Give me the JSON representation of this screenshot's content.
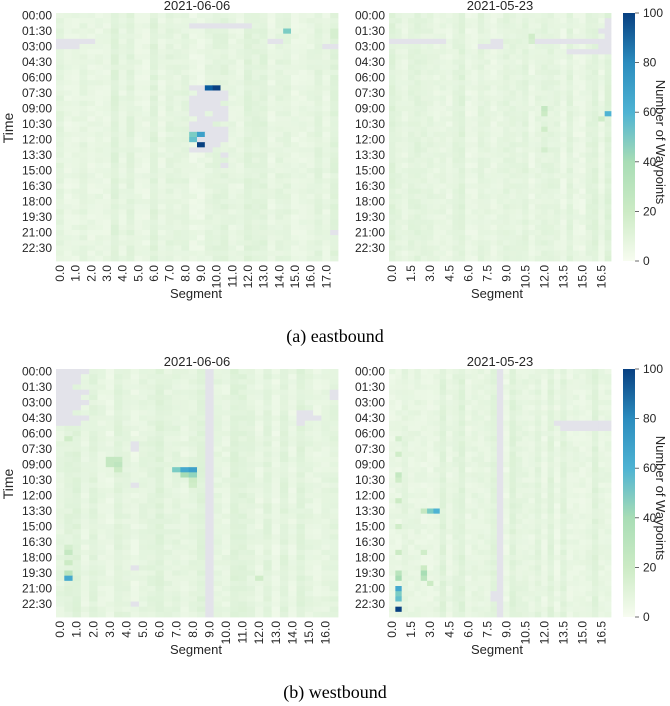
{
  "figure": {
    "panel_a_caption": "(a) eastbound",
    "panel_b_caption": "(b) westbound",
    "ylabel": "Time",
    "xlabel": "Segment",
    "colorbar_label": "Number of Waypoints"
  },
  "chart_data": [
    {
      "type": "heatmap",
      "panel": "eastbound",
      "title": "2021-06-06",
      "xlabel": "Segment",
      "ylabel": "Time",
      "x_tick_labels": [
        "0.0",
        "1.0",
        "2.0",
        "3.0",
        "4.0",
        "5.0",
        "6.0",
        "7.0",
        "8.0",
        "9.0",
        "10.0",
        "11.0",
        "12.0",
        "13.0",
        "14.0",
        "15.0",
        "16.0",
        "17.0"
      ],
      "x_cols_per_tick": 2,
      "n_cols": 36,
      "y_tick_labels": [
        "00:00",
        "01:30",
        "03:00",
        "04:30",
        "06:00",
        "07:30",
        "09:00",
        "10:30",
        "12:00",
        "13:30",
        "15:00",
        "16:30",
        "18:00",
        "19:30",
        "21:00",
        "22:30"
      ],
      "n_rows": 48,
      "background": 8,
      "missing": [
        [
          2,
          17,
          24
        ],
        [
          5,
          0,
          4
        ],
        [
          5,
          27,
          28
        ],
        [
          6,
          0,
          2
        ],
        [
          6,
          34,
          35
        ],
        [
          14,
          17,
          18
        ],
        [
          15,
          18,
          21
        ],
        [
          16,
          17,
          21
        ],
        [
          17,
          17,
          20
        ],
        [
          18,
          17,
          21
        ],
        [
          19,
          17,
          18
        ],
        [
          19,
          20,
          21
        ],
        [
          20,
          18,
          21
        ],
        [
          21,
          17,
          19
        ],
        [
          22,
          17,
          21
        ],
        [
          23,
          19,
          21
        ],
        [
          24,
          18,
          21
        ],
        [
          25,
          19,
          20
        ],
        [
          26,
          17,
          19
        ],
        [
          27,
          21,
          21
        ],
        [
          29,
          21,
          21
        ],
        [
          42,
          35,
          35
        ]
      ],
      "highlights": [
        [
          3,
          29,
          40
        ],
        [
          14,
          19,
          90
        ],
        [
          14,
          20,
          100
        ],
        [
          15,
          18,
          100
        ],
        [
          16,
          17,
          35
        ],
        [
          16,
          18,
          40
        ],
        [
          19,
          17,
          100
        ],
        [
          22,
          17,
          50
        ],
        [
          23,
          17,
          40
        ],
        [
          23,
          18,
          60
        ],
        [
          24,
          17,
          45
        ],
        [
          24,
          18,
          100
        ],
        [
          24,
          19,
          100
        ],
        [
          25,
          18,
          100
        ],
        [
          3,
          35,
          15
        ],
        [
          4,
          35,
          15
        ],
        [
          8,
          35,
          12
        ],
        [
          30,
          35,
          12
        ]
      ],
      "vmin": 0,
      "vmax": 100
    },
    {
      "type": "heatmap",
      "panel": "eastbound",
      "title": "2021-05-23",
      "xlabel": "Segment",
      "ylabel": "",
      "x_tick_labels": [
        "0.0",
        "1.5",
        "3.0",
        "4.5",
        "6.0",
        "7.5",
        "9.0",
        "10.5",
        "12.0",
        "13.5",
        "15.0",
        "16.5"
      ],
      "x_cols_per_tick": 3,
      "n_cols": 35,
      "y_tick_labels": [
        "00:00",
        "01:30",
        "03:00",
        "04:30",
        "06:00",
        "07:30",
        "09:00",
        "10:30",
        "12:00",
        "13:30",
        "15:00",
        "16:30",
        "18:00",
        "19:30",
        "21:00",
        "22:30"
      ],
      "n_rows": 48,
      "background": 8,
      "missing": [
        [
          1,
          34,
          34
        ],
        [
          2,
          34,
          34
        ],
        [
          3,
          33,
          34
        ],
        [
          4,
          34,
          34
        ],
        [
          5,
          0,
          8
        ],
        [
          5,
          16,
          17
        ],
        [
          5,
          23,
          34
        ],
        [
          6,
          14,
          17
        ],
        [
          6,
          33,
          34
        ],
        [
          7,
          28,
          34
        ]
      ],
      "highlights": [
        [
          18,
          24,
          22
        ],
        [
          19,
          24,
          20
        ],
        [
          22,
          24,
          18
        ],
        [
          26,
          24,
          16
        ],
        [
          19,
          34,
          50
        ],
        [
          20,
          33,
          18
        ],
        [
          4,
          22,
          18
        ],
        [
          5,
          22,
          16
        ]
      ],
      "vmin": 0,
      "vmax": 100
    },
    {
      "type": "heatmap",
      "panel": "westbound",
      "title": "2021-06-06",
      "xlabel": "Segment",
      "ylabel": "Time",
      "x_tick_labels": [
        "0.0",
        "1.0",
        "2.0",
        "3.0",
        "4.0",
        "5.0",
        "6.0",
        "7.0",
        "8.0",
        "9.0",
        "10.0",
        "11.0",
        "12.0",
        "13.0",
        "14.0",
        "15.0",
        "16.0"
      ],
      "x_cols_per_tick": 2,
      "n_cols": 34,
      "y_tick_labels": [
        "00:00",
        "01:30",
        "03:00",
        "04:30",
        "06:00",
        "07:30",
        "09:00",
        "10:30",
        "12:00",
        "13:30",
        "15:00",
        "16:30",
        "18:00",
        "19:30",
        "21:00",
        "22:30"
      ],
      "n_rows": 48,
      "background": 8,
      "missing": [
        [
          0,
          0,
          3
        ],
        [
          1,
          0,
          2
        ],
        [
          2,
          0,
          2
        ],
        [
          3,
          0,
          1
        ],
        [
          4,
          0,
          3
        ],
        [
          5,
          0,
          2
        ],
        [
          6,
          0,
          3
        ],
        [
          7,
          0,
          2
        ],
        [
          8,
          0,
          1
        ],
        [
          9,
          0,
          3
        ],
        [
          10,
          0,
          2
        ],
        [
          4,
          33,
          34
        ],
        [
          5,
          33,
          34
        ],
        [
          8,
          29,
          30
        ],
        [
          9,
          29,
          31
        ],
        [
          10,
          29,
          29
        ],
        [
          0,
          18,
          18
        ],
        [
          1,
          18,
          18
        ],
        [
          2,
          18,
          18
        ],
        [
          3,
          18,
          18
        ],
        [
          4,
          18,
          18
        ],
        [
          5,
          18,
          18
        ],
        [
          6,
          18,
          18
        ],
        [
          7,
          18,
          18
        ],
        [
          8,
          18,
          18
        ],
        [
          9,
          18,
          18
        ],
        [
          10,
          18,
          18
        ],
        [
          11,
          18,
          18
        ],
        [
          12,
          18,
          18
        ],
        [
          13,
          18,
          18
        ],
        [
          14,
          18,
          18
        ],
        [
          15,
          18,
          18
        ],
        [
          16,
          18,
          18
        ],
        [
          17,
          18,
          18
        ],
        [
          18,
          18,
          18
        ],
        [
          19,
          18,
          18
        ],
        [
          20,
          18,
          18
        ],
        [
          21,
          18,
          18
        ],
        [
          22,
          18,
          18
        ],
        [
          23,
          18,
          18
        ],
        [
          24,
          18,
          18
        ],
        [
          25,
          18,
          18
        ],
        [
          26,
          18,
          18
        ],
        [
          27,
          18,
          18
        ],
        [
          28,
          18,
          18
        ],
        [
          29,
          18,
          18
        ],
        [
          30,
          18,
          18
        ],
        [
          31,
          18,
          18
        ],
        [
          32,
          18,
          18
        ],
        [
          33,
          18,
          18
        ],
        [
          34,
          18,
          18
        ],
        [
          35,
          18,
          18
        ],
        [
          36,
          18,
          18
        ],
        [
          37,
          18,
          18
        ],
        [
          38,
          18,
          18
        ],
        [
          39,
          18,
          18
        ],
        [
          40,
          18,
          18
        ],
        [
          41,
          18,
          18
        ],
        [
          42,
          18,
          18
        ],
        [
          43,
          18,
          18
        ],
        [
          44,
          18,
          18
        ],
        [
          45,
          18,
          18
        ],
        [
          46,
          18,
          18
        ],
        [
          47,
          18,
          18
        ],
        [
          14,
          9,
          9
        ],
        [
          15,
          9,
          9
        ],
        [
          22,
          9,
          9
        ],
        [
          38,
          9,
          9
        ],
        [
          45,
          9,
          9
        ]
      ],
      "highlights": [
        [
          17,
          6,
          22
        ],
        [
          17,
          7,
          22
        ],
        [
          18,
          6,
          22
        ],
        [
          18,
          7,
          24
        ],
        [
          19,
          7,
          20
        ],
        [
          19,
          14,
          40
        ],
        [
          19,
          15,
          55
        ],
        [
          19,
          16,
          60
        ],
        [
          20,
          15,
          30
        ],
        [
          20,
          16,
          35
        ],
        [
          21,
          16,
          20
        ],
        [
          22,
          16,
          18
        ],
        [
          13,
          1,
          18
        ],
        [
          34,
          1,
          16
        ],
        [
          35,
          1,
          22
        ],
        [
          37,
          1,
          20
        ],
        [
          39,
          1,
          25
        ],
        [
          40,
          1,
          55
        ],
        [
          40,
          24,
          18
        ]
      ],
      "vmin": 0,
      "vmax": 100
    },
    {
      "type": "heatmap",
      "panel": "westbound",
      "title": "2021-05-23",
      "xlabel": "Segment",
      "ylabel": "",
      "x_tick_labels": [
        "0.0",
        "1.5",
        "3.0",
        "4.5",
        "6.0",
        "7.5",
        "9.0",
        "10.5",
        "12.0",
        "13.5",
        "15.0",
        "16.5"
      ],
      "x_cols_per_tick": 3,
      "n_cols": 35,
      "y_tick_labels": [
        "00:00",
        "01:30",
        "03:00",
        "04:30",
        "06:00",
        "07:30",
        "09:00",
        "10:30",
        "12:00",
        "13:30",
        "15:00",
        "16:30",
        "18:00",
        "19:30",
        "21:00",
        "22:30"
      ],
      "n_rows": 48,
      "background": 8,
      "missing": [
        [
          10,
          26,
          34
        ],
        [
          11,
          27,
          34
        ],
        [
          0,
          17,
          17
        ],
        [
          1,
          17,
          17
        ],
        [
          2,
          17,
          17
        ],
        [
          3,
          17,
          17
        ],
        [
          4,
          17,
          17
        ],
        [
          5,
          17,
          17
        ],
        [
          6,
          17,
          17
        ],
        [
          7,
          17,
          17
        ],
        [
          8,
          17,
          17
        ],
        [
          9,
          17,
          17
        ],
        [
          10,
          17,
          17
        ],
        [
          11,
          17,
          17
        ],
        [
          12,
          17,
          17
        ],
        [
          13,
          17,
          17
        ],
        [
          14,
          17,
          17
        ],
        [
          15,
          17,
          17
        ],
        [
          16,
          17,
          17
        ],
        [
          17,
          17,
          17
        ],
        [
          18,
          17,
          17
        ],
        [
          19,
          17,
          17
        ],
        [
          20,
          17,
          17
        ],
        [
          21,
          17,
          17
        ],
        [
          22,
          17,
          17
        ],
        [
          23,
          17,
          17
        ],
        [
          24,
          17,
          17
        ],
        [
          25,
          17,
          17
        ],
        [
          26,
          17,
          17
        ],
        [
          27,
          17,
          17
        ],
        [
          28,
          17,
          17
        ],
        [
          29,
          17,
          17
        ],
        [
          30,
          17,
          17
        ],
        [
          31,
          17,
          17
        ],
        [
          32,
          17,
          17
        ],
        [
          33,
          17,
          17
        ],
        [
          34,
          17,
          17
        ],
        [
          35,
          17,
          17
        ],
        [
          36,
          17,
          17
        ],
        [
          37,
          17,
          17
        ],
        [
          38,
          17,
          17
        ],
        [
          39,
          17,
          17
        ],
        [
          40,
          17,
          17
        ],
        [
          41,
          17,
          17
        ],
        [
          42,
          17,
          17
        ],
        [
          43,
          17,
          17
        ],
        [
          44,
          17,
          17
        ],
        [
          45,
          17,
          17
        ],
        [
          46,
          17,
          17
        ],
        [
          47,
          17,
          17
        ],
        [
          43,
          16,
          16
        ],
        [
          44,
          16,
          16
        ]
      ],
      "highlights": [
        [
          13,
          1,
          16
        ],
        [
          16,
          1,
          18
        ],
        [
          20,
          1,
          22
        ],
        [
          21,
          1,
          18
        ],
        [
          25,
          1,
          20
        ],
        [
          30,
          1,
          18
        ],
        [
          35,
          1,
          20
        ],
        [
          39,
          1,
          25
        ],
        [
          40,
          1,
          30
        ],
        [
          42,
          1,
          55
        ],
        [
          43,
          1,
          40
        ],
        [
          44,
          1,
          45
        ],
        [
          46,
          1,
          100
        ],
        [
          27,
          5,
          22
        ],
        [
          27,
          6,
          40
        ],
        [
          27,
          7,
          50
        ],
        [
          35,
          5,
          18
        ],
        [
          38,
          5,
          20
        ],
        [
          39,
          5,
          30
        ],
        [
          40,
          5,
          25
        ],
        [
          41,
          6,
          20
        ]
      ],
      "vmin": 0,
      "vmax": 100
    }
  ],
  "colorbars": [
    {
      "ticks": [
        "100",
        "80",
        "60",
        "40",
        "20",
        "0"
      ],
      "values": [
        100,
        80,
        60,
        40,
        20,
        0
      ]
    },
    {
      "ticks": [
        "100",
        "80",
        "60",
        "40",
        "20",
        "0"
      ],
      "values": [
        100,
        80,
        60,
        40,
        20,
        0
      ]
    }
  ]
}
